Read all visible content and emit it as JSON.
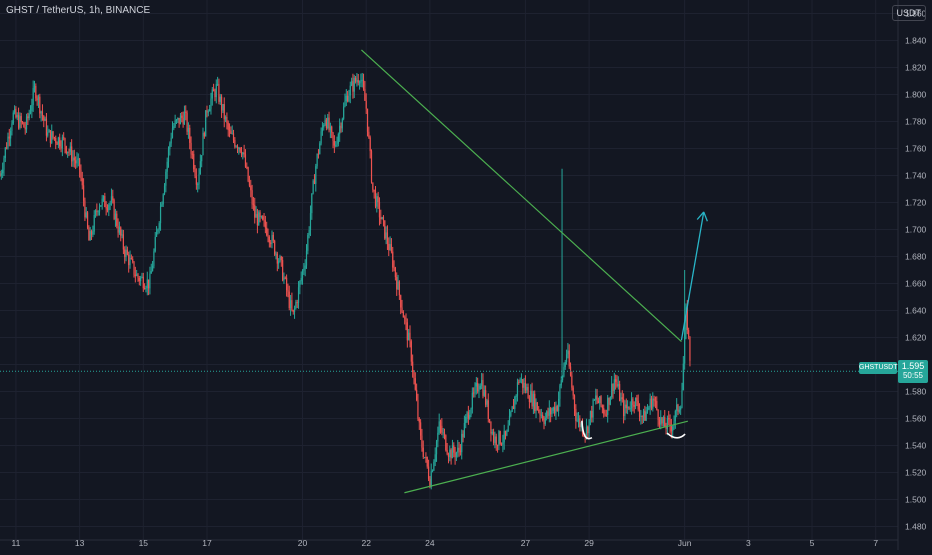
{
  "header": {
    "title": "GHST / TetherUS, 1h, BINANCE",
    "currency_button": "USDT"
  },
  "price_label": {
    "symbol": "GHSTUSDT",
    "price": "1.595",
    "countdown": "50:55"
  },
  "colors": {
    "background": "#131722",
    "up": "#26a69a",
    "down": "#ef5350",
    "trendline": "#4caf50",
    "arrow": "#29b6c8",
    "grid": "#1e2230"
  },
  "chart_data": {
    "type": "candlestick",
    "x_ticks": [
      "11",
      "13",
      "15",
      "17",
      "20",
      "22",
      "24",
      "27",
      "29",
      "Jun",
      "3",
      "5",
      "7"
    ],
    "y_ticks": [
      "1.480",
      "1.500",
      "1.520",
      "1.540",
      "1.560",
      "1.580",
      "1.600",
      "1.620",
      "1.640",
      "1.660",
      "1.680",
      "1.700",
      "1.720",
      "1.740",
      "1.760",
      "1.780",
      "1.800",
      "1.820",
      "1.840",
      "1.860"
    ],
    "ylim": [
      1.47,
      1.87
    ],
    "x_range_days": [
      10.5,
      38.7
    ],
    "current_price": 1.595,
    "trend_down": [
      [
        21.85,
        1.833
      ],
      [
        31.9,
        1.617
      ]
    ],
    "trend_up": [
      [
        23.2,
        1.505
      ],
      [
        32.1,
        1.558
      ]
    ],
    "arrow": [
      [
        31.9,
        1.618
      ],
      [
        32.6,
        1.713
      ]
    ],
    "marks_at": [
      [
        28.9,
        1.548
      ],
      [
        31.7,
        1.547
      ]
    ],
    "key_points": [
      [
        10.5,
        1.74
      ],
      [
        10.9,
        1.785
      ],
      [
        11.3,
        1.775
      ],
      [
        11.6,
        1.805
      ],
      [
        12.0,
        1.77
      ],
      [
        12.5,
        1.765
      ],
      [
        13.0,
        1.745
      ],
      [
        13.3,
        1.69
      ],
      [
        13.6,
        1.72
      ],
      [
        14.0,
        1.72
      ],
      [
        14.4,
        1.685
      ],
      [
        14.8,
        1.665
      ],
      [
        15.2,
        1.66
      ],
      [
        15.5,
        1.71
      ],
      [
        15.9,
        1.775
      ],
      [
        16.3,
        1.785
      ],
      [
        16.7,
        1.735
      ],
      [
        17.0,
        1.79
      ],
      [
        17.3,
        1.805
      ],
      [
        17.7,
        1.77
      ],
      [
        18.1,
        1.76
      ],
      [
        18.5,
        1.71
      ],
      [
        18.9,
        1.7
      ],
      [
        19.3,
        1.675
      ],
      [
        19.7,
        1.635
      ],
      [
        20.1,
        1.68
      ],
      [
        20.4,
        1.745
      ],
      [
        20.7,
        1.785
      ],
      [
        21.0,
        1.76
      ],
      [
        21.4,
        1.8
      ],
      [
        21.8,
        1.815
      ],
      [
        22.0,
        1.79
      ],
      [
        22.2,
        1.73
      ],
      [
        22.5,
        1.705
      ],
      [
        22.8,
        1.68
      ],
      [
        23.1,
        1.645
      ],
      [
        23.4,
        1.61
      ],
      [
        23.7,
        1.545
      ],
      [
        24.0,
        1.515
      ],
      [
        24.3,
        1.555
      ],
      [
        24.6,
        1.535
      ],
      [
        24.9,
        1.535
      ],
      [
        25.2,
        1.565
      ],
      [
        25.6,
        1.59
      ],
      [
        26.0,
        1.545
      ],
      [
        26.4,
        1.545
      ],
      [
        26.8,
        1.59
      ],
      [
        27.2,
        1.575
      ],
      [
        27.6,
        1.56
      ],
      [
        28.0,
        1.57
      ],
      [
        28.3,
        1.61
      ],
      [
        28.6,
        1.56
      ],
      [
        28.9,
        1.55
      ],
      [
        29.2,
        1.575
      ],
      [
        29.5,
        1.565
      ],
      [
        29.8,
        1.59
      ],
      [
        30.1,
        1.565
      ],
      [
        30.4,
        1.575
      ],
      [
        30.7,
        1.56
      ],
      [
        31.0,
        1.575
      ],
      [
        31.3,
        1.555
      ],
      [
        31.6,
        1.555
      ],
      [
        31.9,
        1.575
      ],
      [
        32.05,
        1.64
      ],
      [
        32.2,
        1.595
      ]
    ],
    "spikes": [
      [
        28.15,
        1.745
      ],
      [
        32.0,
        1.67
      ]
    ]
  }
}
